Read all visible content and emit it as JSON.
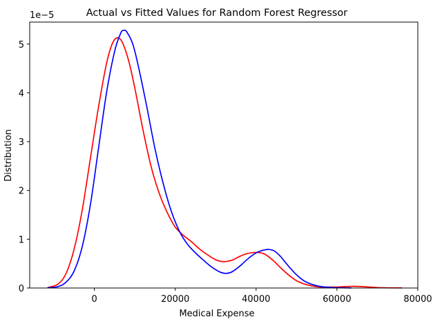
{
  "chart_data": {
    "type": "line",
    "title": "Actual vs Fitted Values for Random Forest Regressor",
    "xlabel": "Medical Expense",
    "ylabel": "Distribution",
    "y_offset_label": "1e−5",
    "xlim": [
      -16000,
      80000
    ],
    "ylim": [
      0,
      5.45
    ],
    "grid": false,
    "legend": "none",
    "x_ticks": [
      {
        "value": 0,
        "label": "0"
      },
      {
        "value": 20000,
        "label": "20000"
      },
      {
        "value": 40000,
        "label": "40000"
      },
      {
        "value": 60000,
        "label": "60000"
      },
      {
        "value": 80000,
        "label": "80000"
      }
    ],
    "y_ticks": [
      {
        "value": 0,
        "label": "0"
      },
      {
        "value": 1,
        "label": "1"
      },
      {
        "value": 2,
        "label": "2"
      },
      {
        "value": 3,
        "label": "3"
      },
      {
        "value": 4,
        "label": "4"
      },
      {
        "value": 5,
        "label": "5"
      }
    ],
    "series": [
      {
        "color": "#ff0000",
        "points": [
          [
            -11500,
            0.01
          ],
          [
            -9000,
            0.08
          ],
          [
            -7000,
            0.3
          ],
          [
            -5000,
            0.8
          ],
          [
            -3000,
            1.6
          ],
          [
            -1000,
            2.65
          ],
          [
            1000,
            3.7
          ],
          [
            3000,
            4.6
          ],
          [
            4500,
            5.02
          ],
          [
            5800,
            5.13
          ],
          [
            7000,
            5.02
          ],
          [
            8500,
            4.65
          ],
          [
            10000,
            4.1
          ],
          [
            12000,
            3.25
          ],
          [
            14000,
            2.5
          ],
          [
            16000,
            1.95
          ],
          [
            18000,
            1.55
          ],
          [
            20000,
            1.25
          ],
          [
            22000,
            1.08
          ],
          [
            24000,
            0.95
          ],
          [
            26000,
            0.8
          ],
          [
            28000,
            0.68
          ],
          [
            30000,
            0.58
          ],
          [
            32000,
            0.54
          ],
          [
            34000,
            0.57
          ],
          [
            36000,
            0.65
          ],
          [
            38000,
            0.71
          ],
          [
            40000,
            0.73
          ],
          [
            42000,
            0.7
          ],
          [
            44000,
            0.58
          ],
          [
            46000,
            0.42
          ],
          [
            48000,
            0.27
          ],
          [
            50000,
            0.15
          ],
          [
            52000,
            0.08
          ],
          [
            54000,
            0.04
          ],
          [
            56000,
            0.02
          ],
          [
            58000,
            0.02
          ],
          [
            60000,
            0.02
          ],
          [
            62000,
            0.03
          ],
          [
            64000,
            0.035
          ],
          [
            66000,
            0.03
          ],
          [
            68000,
            0.02
          ],
          [
            70000,
            0.01
          ],
          [
            72000,
            0.005
          ],
          [
            74000,
            0.003
          ],
          [
            76000,
            0.002
          ]
        ]
      },
      {
        "color": "#0000ff",
        "points": [
          [
            -11500,
            0.005
          ],
          [
            -9000,
            0.03
          ],
          [
            -7000,
            0.12
          ],
          [
            -5000,
            0.35
          ],
          [
            -3000,
            0.85
          ],
          [
            -1000,
            1.7
          ],
          [
            1000,
            2.85
          ],
          [
            3000,
            4.0
          ],
          [
            5000,
            4.85
          ],
          [
            6500,
            5.22
          ],
          [
            7200,
            5.28
          ],
          [
            8000,
            5.25
          ],
          [
            9500,
            5.0
          ],
          [
            11000,
            4.5
          ],
          [
            13000,
            3.7
          ],
          [
            15000,
            2.85
          ],
          [
            17000,
            2.15
          ],
          [
            19000,
            1.58
          ],
          [
            21000,
            1.17
          ],
          [
            23000,
            0.9
          ],
          [
            25000,
            0.72
          ],
          [
            27000,
            0.57
          ],
          [
            29000,
            0.43
          ],
          [
            31000,
            0.33
          ],
          [
            32500,
            0.3
          ],
          [
            34000,
            0.33
          ],
          [
            36000,
            0.45
          ],
          [
            38000,
            0.6
          ],
          [
            40000,
            0.72
          ],
          [
            42000,
            0.78
          ],
          [
            43200,
            0.79
          ],
          [
            44500,
            0.76
          ],
          [
            46000,
            0.65
          ],
          [
            48000,
            0.45
          ],
          [
            50000,
            0.27
          ],
          [
            52000,
            0.14
          ],
          [
            54000,
            0.07
          ],
          [
            56000,
            0.03
          ],
          [
            58000,
            0.015
          ],
          [
            60000,
            0.008
          ],
          [
            62000,
            0.004
          ],
          [
            63500,
            0.002
          ]
        ]
      }
    ]
  }
}
